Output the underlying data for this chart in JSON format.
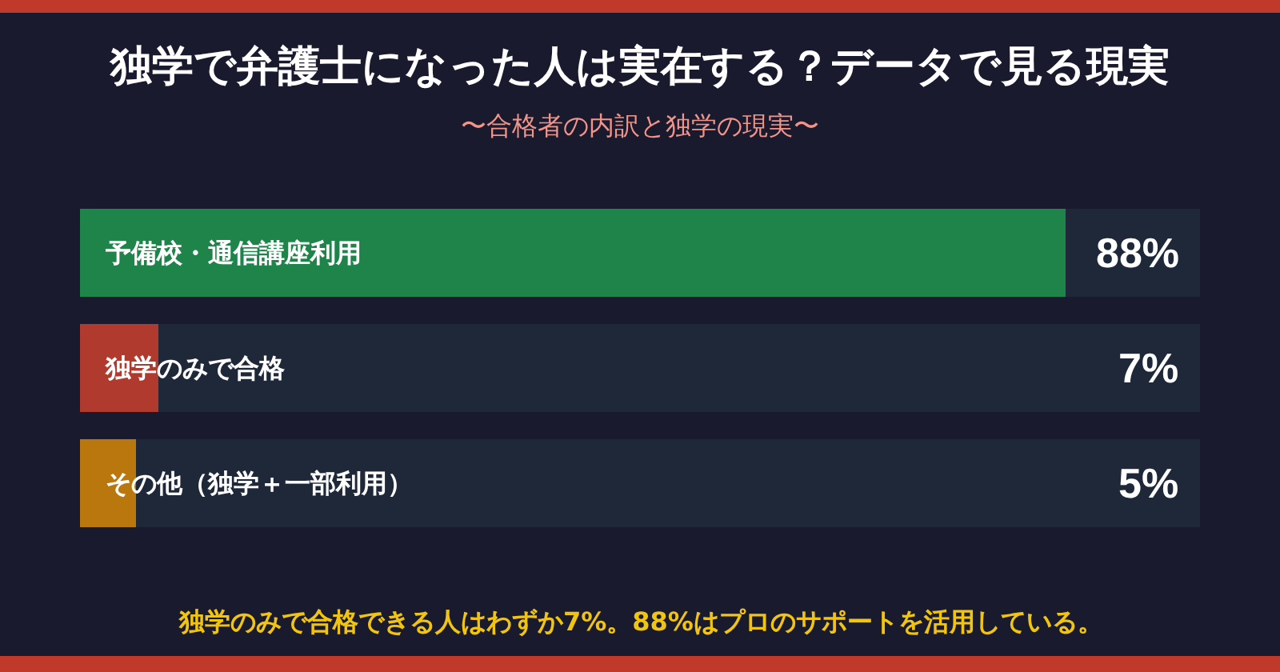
{
  "chart_data": {
    "type": "bar",
    "orientation": "horizontal",
    "title": "独学で弁護士になった人は実在する？データで見る現実",
    "subtitle": "〜合格者の内訳と独学の現実〜",
    "categories": [
      "予備校・通信講座利用",
      "独学のみで合格",
      "その他（独学＋一部利用）"
    ],
    "values": [
      88,
      7,
      5
    ],
    "colors": [
      "#1e8449",
      "#b03a2e",
      "#b9770e"
    ],
    "value_labels": [
      "88%",
      "7%",
      "5%"
    ],
    "xlim": [
      0,
      100
    ],
    "tick_labels": "y",
    "annotations": [
      "独学のみで合格できる人はわずか7%。88%はプロのサポートを活用している。"
    ]
  }
}
